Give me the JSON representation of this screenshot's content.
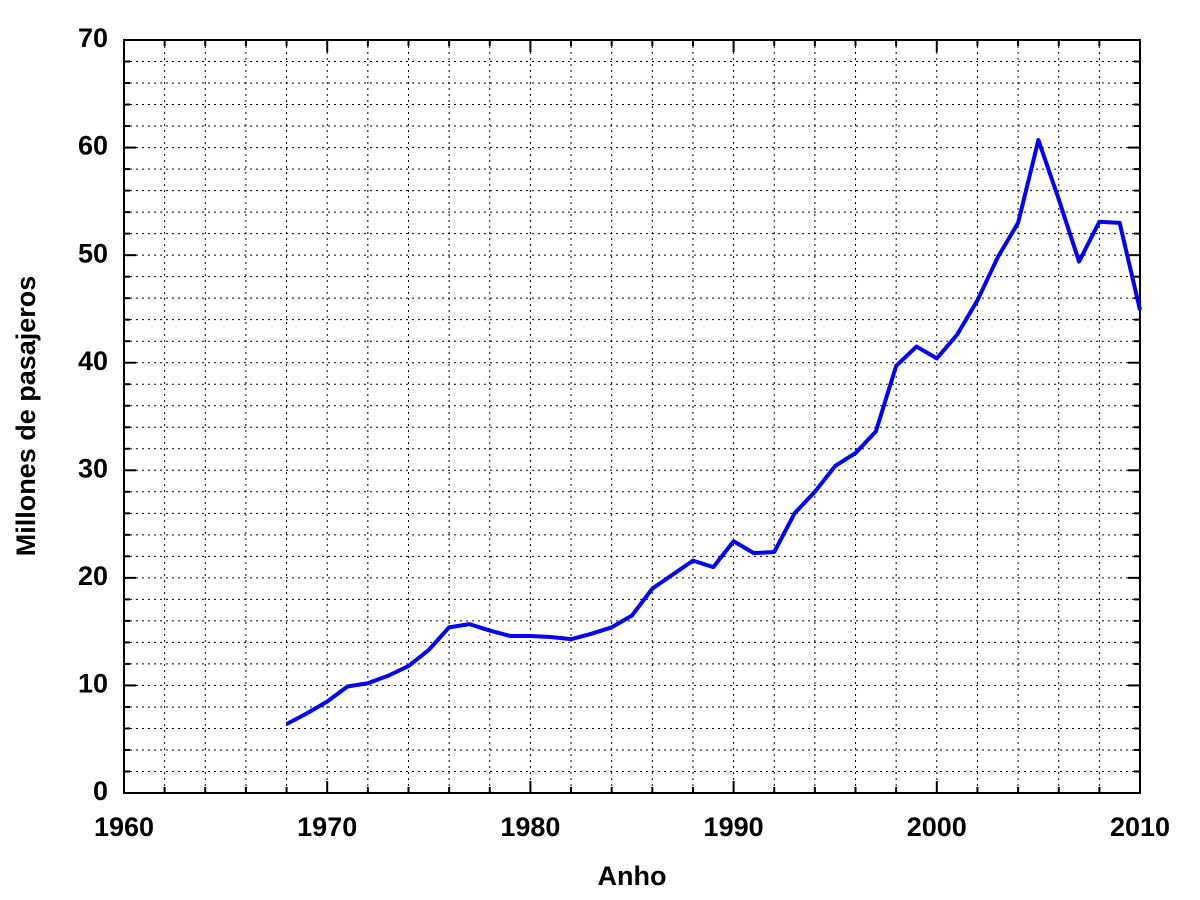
{
  "chart_data": {
    "type": "line",
    "x_label": "Anho",
    "y_label": "Millones de pasajeros",
    "x": [
      1968,
      1969,
      1970,
      1971,
      1972,
      1973,
      1974,
      1975,
      1976,
      1977,
      1978,
      1979,
      1980,
      1981,
      1982,
      1983,
      1984,
      1985,
      1986,
      1987,
      1988,
      1989,
      1990,
      1991,
      1992,
      1993,
      1994,
      1995,
      1996,
      1997,
      1998,
      1999,
      2000,
      2001,
      2002,
      2003,
      2004,
      2005,
      2006,
      2007,
      2008,
      2009,
      2010
    ],
    "series": [
      {
        "color": "#0000ff",
        "values": [
          6.4,
          7.4,
          8.5,
          9.9,
          10.2,
          10.9,
          11.8,
          13.3,
          15.4,
          15.7,
          15.1,
          14.6,
          14.6,
          14.5,
          14.3,
          14.8,
          15.4,
          16.5,
          19.0,
          20.3,
          21.6,
          21.0,
          23.4,
          22.3,
          22.4,
          26.0,
          28.0,
          30.4,
          31.6,
          33.6,
          39.7,
          41.5,
          40.4,
          42.6,
          45.8,
          49.8,
          53.0,
          60.7,
          55.2,
          49.4,
          53.1,
          53.0,
          44.9
        ]
      }
    ],
    "xlim": [
      1960,
      2010
    ],
    "xticks": [
      1960,
      1970,
      1980,
      1990,
      2000,
      2010
    ],
    "xminorticks": [
      1962,
      1964,
      1966,
      1968,
      1972,
      1974,
      1976,
      1978,
      1982,
      1984,
      1986,
      1988,
      1992,
      1994,
      1996,
      1998,
      2002,
      2004,
      2006,
      2008
    ],
    "ylim": [
      0,
      70
    ],
    "yticks": [
      0,
      10,
      20,
      30,
      40,
      50,
      60,
      70
    ],
    "yminorticks": [
      2,
      4,
      6,
      8,
      12,
      14,
      16,
      18,
      22,
      24,
      26,
      28,
      32,
      34,
      36,
      38,
      42,
      44,
      46,
      48,
      52,
      54,
      56,
      58,
      62,
      64,
      66,
      68
    ],
    "grid": true
  }
}
